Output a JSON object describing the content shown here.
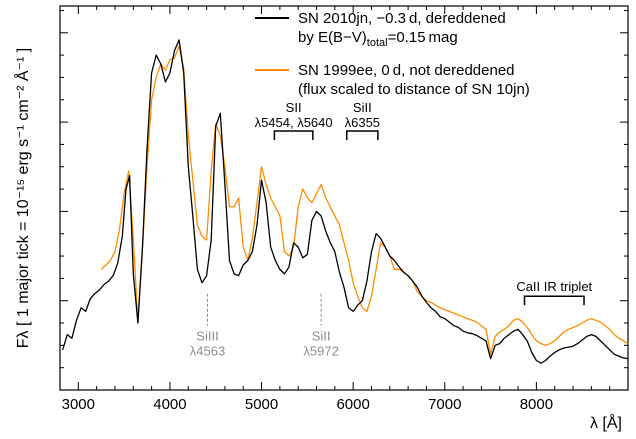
{
  "chart_data": {
    "type": "line",
    "title": "",
    "xlabel": "λ [Å]",
    "ylabel": "Fλ [ 1 major tick = 10⁻¹⁵ erg s⁻¹ cm⁻² Å⁻¹ ]",
    "xlim": [
      2800,
      9000
    ],
    "ylim": [
      0,
      4.3
    ],
    "x_ticks": [
      3000,
      4000,
      5000,
      6000,
      7000,
      8000
    ],
    "x_tick_labels": [
      "3000",
      "4000",
      "5000",
      "6000",
      "7000",
      "8000"
    ],
    "y_major_ticks": [
      1,
      2,
      3,
      4
    ],
    "grid": false,
    "legend_position": "top-right",
    "colors": {
      "sn2010jn": "#000000",
      "sn1999ee": "#ff8c00",
      "annotation_grey": "#8c8c8c"
    },
    "series": [
      {
        "name": "SN 2010jn, −0.3 d, dereddened",
        "name_line2_prefix": "by E(B−V)",
        "name_line2_sub": "total",
        "name_line2_suffix": "=0.15 mag",
        "color": "#000000",
        "x": [
          2830,
          2880,
          2930,
          2980,
          3030,
          3080,
          3130,
          3180,
          3230,
          3280,
          3330,
          3380,
          3430,
          3480,
          3520,
          3560,
          3600,
          3650,
          3700,
          3750,
          3800,
          3850,
          3900,
          3950,
          4000,
          4050,
          4100,
          4150,
          4200,
          4250,
          4300,
          4350,
          4400,
          4450,
          4500,
          4550,
          4600,
          4650,
          4700,
          4750,
          4800,
          4850,
          4900,
          4950,
          5000,
          5050,
          5100,
          5150,
          5200,
          5250,
          5300,
          5350,
          5400,
          5450,
          5500,
          5550,
          5600,
          5650,
          5700,
          5750,
          5800,
          5850,
          5900,
          5950,
          6000,
          6050,
          6100,
          6150,
          6200,
          6250,
          6300,
          6350,
          6400,
          6450,
          6500,
          6550,
          6600,
          6650,
          6700,
          6750,
          6800,
          6850,
          6900,
          6950,
          7000,
          7050,
          7100,
          7150,
          7200,
          7250,
          7300,
          7350,
          7400,
          7450,
          7500,
          7550,
          7600,
          7650,
          7700,
          7750,
          7800,
          7850,
          7900,
          7950,
          8000,
          8050,
          8100,
          8150,
          8200,
          8250,
          8300,
          8350,
          8400,
          8450,
          8500,
          8550,
          8600,
          8650,
          8700,
          8750,
          8800,
          8850,
          8900,
          8950,
          9000
        ],
        "y": [
          0.45,
          0.62,
          0.58,
          0.78,
          0.92,
          0.88,
          1.02,
          1.08,
          1.12,
          1.18,
          1.22,
          1.28,
          1.42,
          1.72,
          2.25,
          2.4,
          1.3,
          0.75,
          1.6,
          2.7,
          3.55,
          3.75,
          3.65,
          3.45,
          3.55,
          3.8,
          3.92,
          3.55,
          2.5,
          1.95,
          1.35,
          1.2,
          1.28,
          1.68,
          2.95,
          3.1,
          2.3,
          1.45,
          1.3,
          1.28,
          1.4,
          1.45,
          1.55,
          1.85,
          2.35,
          2.1,
          1.6,
          1.45,
          1.35,
          1.3,
          1.38,
          1.65,
          1.6,
          1.48,
          1.52,
          1.9,
          2.0,
          1.95,
          1.78,
          1.65,
          1.55,
          1.32,
          1.15,
          0.92,
          0.88,
          0.95,
          1.0,
          1.22,
          1.55,
          1.75,
          1.7,
          1.6,
          1.5,
          1.45,
          1.38,
          1.32,
          1.28,
          1.22,
          1.15,
          1.05,
          0.98,
          0.92,
          0.88,
          0.82,
          0.8,
          0.76,
          0.72,
          0.7,
          0.66,
          0.64,
          0.63,
          0.61,
          0.58,
          0.55,
          0.35,
          0.5,
          0.52,
          0.58,
          0.62,
          0.66,
          0.68,
          0.62,
          0.55,
          0.42,
          0.33,
          0.3,
          0.33,
          0.38,
          0.42,
          0.45,
          0.47,
          0.48,
          0.49,
          0.52,
          0.56,
          0.6,
          0.62,
          0.6,
          0.55,
          0.5,
          0.45,
          0.4,
          0.38,
          0.36,
          0.35
        ]
      },
      {
        "name": "SN 1999ee, 0 d, not dereddened",
        "name_line2": "(flux scaled to distance of SN 10jn)",
        "color": "#ff8c00",
        "x": [
          3250,
          3300,
          3350,
          3400,
          3450,
          3500,
          3550,
          3600,
          3650,
          3700,
          3750,
          3800,
          3850,
          3900,
          3950,
          4000,
          4050,
          4100,
          4150,
          4200,
          4250,
          4300,
          4350,
          4400,
          4450,
          4500,
          4550,
          4600,
          4650,
          4700,
          4750,
          4800,
          4850,
          4900,
          4950,
          5000,
          5050,
          5100,
          5150,
          5200,
          5250,
          5300,
          5350,
          5400,
          5450,
          5500,
          5550,
          5600,
          5650,
          5700,
          5750,
          5800,
          5850,
          5900,
          5950,
          6000,
          6050,
          6100,
          6150,
          6200,
          6250,
          6300,
          6350,
          6400,
          6450,
          6500,
          6550,
          6600,
          6650,
          6700,
          6750,
          6800,
          6850,
          6900,
          6950,
          7000,
          7050,
          7100,
          7150,
          7200,
          7250,
          7300,
          7350,
          7400,
          7450,
          7500,
          7550,
          7600,
          7650,
          7700,
          7750,
          7800,
          7850,
          7900,
          7950,
          8000,
          8050,
          8100,
          8150,
          8200,
          8250,
          8300,
          8350,
          8400,
          8450,
          8500,
          8550,
          8600,
          8650,
          8700,
          8750,
          8800,
          8850,
          8900,
          8950,
          9000
        ],
        "y": [
          1.35,
          1.4,
          1.45,
          1.55,
          1.8,
          2.2,
          2.45,
          1.7,
          0.75,
          1.6,
          2.5,
          3.25,
          3.5,
          3.65,
          3.58,
          3.7,
          3.72,
          3.85,
          3.6,
          2.85,
          2.35,
          1.85,
          1.72,
          1.68,
          2.45,
          2.98,
          2.85,
          2.5,
          2.05,
          2.05,
          2.15,
          1.6,
          1.45,
          1.7,
          2.1,
          2.5,
          2.3,
          2.15,
          2.05,
          1.95,
          1.55,
          1.5,
          1.6,
          2.05,
          2.25,
          2.15,
          2.1,
          2.2,
          2.3,
          2.15,
          2.05,
          1.95,
          1.85,
          1.65,
          1.45,
          1.2,
          1.05,
          0.92,
          0.88,
          1.05,
          1.35,
          1.65,
          1.6,
          1.5,
          1.35,
          1.35,
          1.32,
          1.28,
          1.22,
          1.1,
          1.05,
          1.0,
          0.98,
          0.95,
          0.92,
          0.9,
          0.88,
          0.86,
          0.84,
          0.82,
          0.8,
          0.78,
          0.76,
          0.72,
          0.68,
          0.4,
          0.6,
          0.65,
          0.68,
          0.72,
          0.78,
          0.8,
          0.76,
          0.7,
          0.62,
          0.55,
          0.52,
          0.5,
          0.52,
          0.55,
          0.6,
          0.65,
          0.68,
          0.7,
          0.72,
          0.75,
          0.78,
          0.8,
          0.78,
          0.76,
          0.72,
          0.68,
          0.62,
          0.58,
          0.55,
          0.52
        ]
      }
    ],
    "annotations": [
      {
        "text1": "SII",
        "text2": "λ5454, λ5640",
        "x_start": 5140,
        "x_end": 5560,
        "y": 2.9,
        "color": "#000000",
        "style": "bracket"
      },
      {
        "text1": "SiII",
        "text2": "λ6355",
        "x_start": 5930,
        "x_end": 6270,
        "y": 2.9,
        "color": "#000000",
        "style": "bracket"
      },
      {
        "text1": "CaII IR triplet",
        "text2": "",
        "x_start": 7870,
        "x_end": 8520,
        "y": 1.05,
        "color": "#000000",
        "style": "bracket"
      },
      {
        "text1": "SiIII",
        "text2": "λ4563",
        "x_start": 4410,
        "x_end": 4410,
        "y": 0.72,
        "color": "#8c8c8c",
        "style": "dashed"
      },
      {
        "text1": "SiII",
        "text2": "λ5972",
        "x_start": 5650,
        "x_end": 5650,
        "y": 0.72,
        "color": "#8c8c8c",
        "style": "dashed"
      }
    ]
  }
}
